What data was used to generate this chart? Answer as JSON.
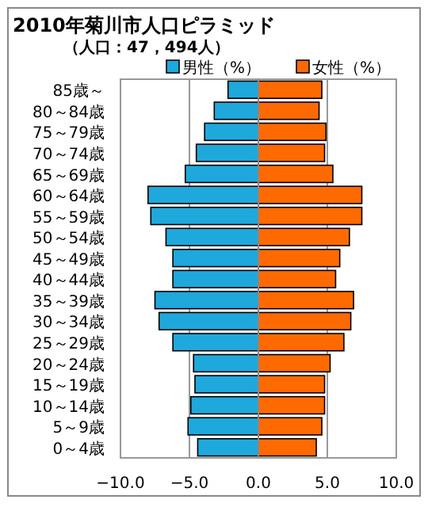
{
  "chart_data": {
    "type": "bar",
    "orientation": "horizontal",
    "title": "2010年菊川市人口ピラミッド",
    "subtitle": "（人口：47，494人）",
    "categories": [
      "85歳～",
      "80～84歳",
      "75～79歳",
      "70～74歳",
      "65～69歳",
      "60～64歳",
      "55～59歳",
      "50～54歳",
      "45～49歳",
      "40～44歳",
      "35～39歳",
      "30～34歳",
      "25～29歳",
      "20～24歳",
      "15～19歳",
      "10～14歳",
      "5～9歳",
      "0～4歳"
    ],
    "series": [
      {
        "name": "男性（%）",
        "color": "#1ea8dc",
        "values": [
          -2.2,
          -3.2,
          -3.9,
          -4.5,
          -5.3,
          -8.0,
          -7.8,
          -6.7,
          -6.2,
          -6.2,
          -7.5,
          -7.2,
          -6.2,
          -4.7,
          -4.6,
          -4.9,
          -5.1,
          -4.4
        ]
      },
      {
        "name": "女性（%）",
        "color": "#ff6a00",
        "values": [
          4.6,
          4.4,
          4.9,
          4.8,
          5.4,
          7.5,
          7.5,
          6.6,
          5.9,
          5.6,
          6.9,
          6.7,
          6.2,
          5.2,
          4.8,
          4.8,
          4.6,
          4.2
        ]
      }
    ],
    "xlim": [
      -10,
      10
    ],
    "xticks": [
      {
        "value": -10,
        "label": "−10.0"
      },
      {
        "value": -5,
        "label": "−5.0"
      },
      {
        "value": 0,
        "label": "0.0"
      },
      {
        "value": 5,
        "label": "5.0"
      },
      {
        "value": 10,
        "label": "10.0"
      }
    ],
    "grid": "x",
    "legend": "top",
    "stacked": true
  }
}
